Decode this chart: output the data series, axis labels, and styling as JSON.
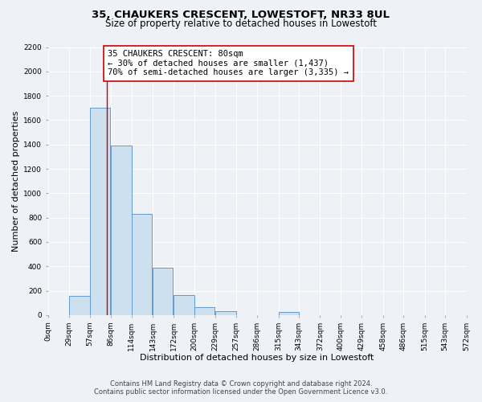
{
  "title": "35, CHAUKERS CRESCENT, LOWESTOFT, NR33 8UL",
  "subtitle": "Size of property relative to detached houses in Lowestoft",
  "xlabel": "Distribution of detached houses by size in Lowestoft",
  "ylabel": "Number of detached properties",
  "bar_left_edges": [
    0,
    29,
    57,
    86,
    114,
    143,
    172,
    200,
    229,
    257,
    286,
    315,
    343,
    372,
    400,
    429,
    458,
    486,
    515,
    543
  ],
  "bar_heights": [
    0,
    155,
    1700,
    1390,
    830,
    385,
    165,
    65,
    30,
    0,
    0,
    25,
    0,
    0,
    0,
    0,
    0,
    0,
    0,
    0
  ],
  "bin_width": 28,
  "bar_facecolor": "#cce0f0",
  "bar_edgecolor": "#6699cc",
  "property_line_x": 80,
  "property_line_color": "#cc0000",
  "annotation_text": "35 CHAUKERS CRESCENT: 80sqm\n← 30% of detached houses are smaller (1,437)\n70% of semi-detached houses are larger (3,335) →",
  "annotation_box_edgecolor": "#cc0000",
  "annotation_box_facecolor": "#ffffff",
  "ylim": [
    0,
    2200
  ],
  "yticks": [
    0,
    200,
    400,
    600,
    800,
    1000,
    1200,
    1400,
    1600,
    1800,
    2000,
    2200
  ],
  "xtick_labels": [
    "0sqm",
    "29sqm",
    "57sqm",
    "86sqm",
    "114sqm",
    "143sqm",
    "172sqm",
    "200sqm",
    "229sqm",
    "257sqm",
    "286sqm",
    "315sqm",
    "343sqm",
    "372sqm",
    "400sqm",
    "429sqm",
    "458sqm",
    "486sqm",
    "515sqm",
    "543sqm",
    "572sqm"
  ],
  "xtick_positions": [
    0,
    29,
    57,
    86,
    114,
    143,
    172,
    200,
    229,
    257,
    286,
    315,
    343,
    372,
    400,
    429,
    458,
    486,
    515,
    543,
    572
  ],
  "background_color": "#eef2f7",
  "footer_line1": "Contains HM Land Registry data © Crown copyright and database right 2024.",
  "footer_line2": "Contains public sector information licensed under the Open Government Licence v3.0.",
  "grid_color": "#ffffff",
  "title_fontsize": 9.5,
  "subtitle_fontsize": 8.5,
  "annotation_fontsize": 7.5,
  "axis_label_fontsize": 8,
  "tick_fontsize": 6.5,
  "footer_fontsize": 6
}
